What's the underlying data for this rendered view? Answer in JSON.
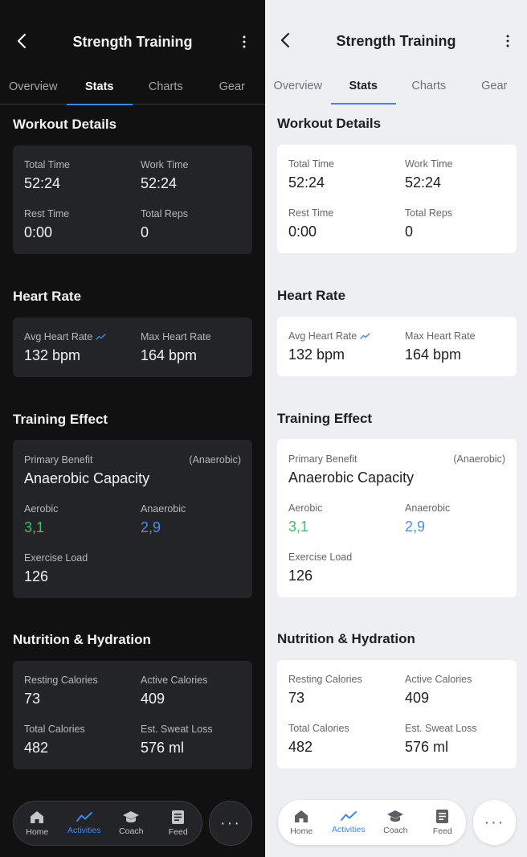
{
  "header": {
    "title": "Strength Training"
  },
  "tabs": [
    {
      "label": "Overview"
    },
    {
      "label": "Stats"
    },
    {
      "label": "Charts"
    },
    {
      "label": "Gear"
    }
  ],
  "active_tab": "Stats",
  "workout_details": {
    "title": "Workout Details",
    "total_time": {
      "label": "Total Time",
      "value": "52:24"
    },
    "work_time": {
      "label": "Work Time",
      "value": "52:24"
    },
    "rest_time": {
      "label": "Rest Time",
      "value": "0:00"
    },
    "total_reps": {
      "label": "Total Reps",
      "value": "0"
    }
  },
  "heart_rate": {
    "title": "Heart Rate",
    "avg": {
      "label": "Avg Heart Rate",
      "value": "132 bpm"
    },
    "max": {
      "label": "Max Heart Rate",
      "value": "164 bpm"
    }
  },
  "training_effect": {
    "title": "Training Effect",
    "primary_benefit": {
      "label": "Primary Benefit",
      "tag": "(Anaerobic)",
      "value": "Anaerobic Capacity"
    },
    "aerobic": {
      "label": "Aerobic",
      "value": "3,1"
    },
    "anaerobic": {
      "label": "Anaerobic",
      "value": "2,9"
    },
    "exercise_load": {
      "label": "Exercise Load",
      "value": "126"
    }
  },
  "nutrition": {
    "title": "Nutrition & Hydration",
    "resting_calories": {
      "label": "Resting Calories",
      "value": "73"
    },
    "active_calories": {
      "label": "Active Calories",
      "value": "409"
    },
    "total_calories": {
      "label": "Total Calories",
      "value": "482"
    },
    "sweat_loss": {
      "label": "Est. Sweat Loss",
      "value": "576 ml"
    }
  },
  "bottom_nav": {
    "items": [
      {
        "label": "Home",
        "icon": "home-icon"
      },
      {
        "label": "Activities",
        "icon": "activities-icon"
      },
      {
        "label": "Coach",
        "icon": "coach-icon"
      },
      {
        "label": "Feed",
        "icon": "feed-icon"
      }
    ],
    "active": "Activities",
    "more_label": "···"
  },
  "colors": {
    "accent": "#3f86e6",
    "aerobic": "#3ec06a",
    "anaerobic": "#4a8fe8",
    "dark_bg": "#111112",
    "dark_card": "#232427",
    "light_bg": "#eeeff2",
    "light_card": "#ffffff"
  }
}
